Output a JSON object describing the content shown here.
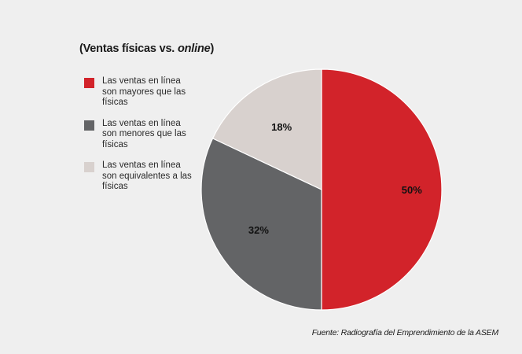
{
  "chart_data": {
    "type": "pie",
    "title_prefix": "(Ventas físicas vs. ",
    "title_emphasis": "online",
    "title_suffix": ")",
    "categories": [
      "Las ventas en línea son mayores que las físicas",
      "Las ventas en línea son menores que las físicas",
      "Las ventas en línea son equivalentes a las físicas"
    ],
    "values": [
      50,
      32,
      18
    ],
    "value_labels": [
      "50%",
      "32%",
      "18%"
    ],
    "colors": [
      "#d2232a",
      "#636466",
      "#d8d1ce"
    ],
    "legend_placement": "left"
  },
  "source": "Fuente: Radiografía del Emprendimiento de la ASEM"
}
